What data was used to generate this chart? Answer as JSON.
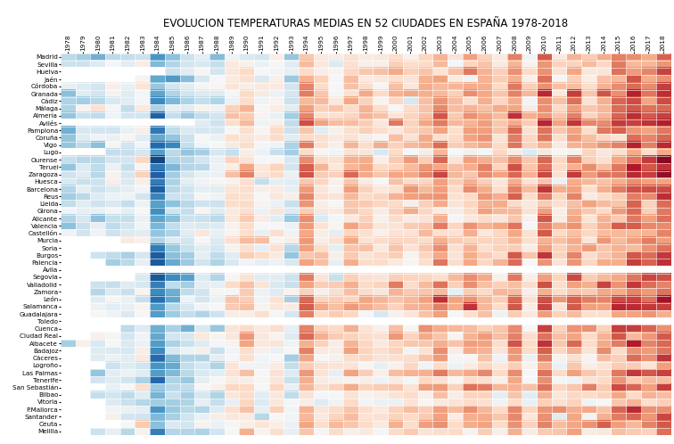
{
  "title": "EVOLUCION TEMPERATURAS MEDIAS EN 52 CIUDADES EN ESPAÑA 1978-2018",
  "years": [
    1978,
    1979,
    1980,
    1981,
    1982,
    1983,
    1984,
    1985,
    1986,
    1987,
    1988,
    1989,
    1990,
    1991,
    1992,
    1993,
    1994,
    1995,
    1996,
    1997,
    1998,
    1999,
    2000,
    2001,
    2002,
    2003,
    2004,
    2005,
    2006,
    2007,
    2008,
    2009,
    2010,
    2011,
    2012,
    2013,
    2014,
    2015,
    2016,
    2017,
    2018
  ],
  "cities": [
    "Madrid",
    "Sevilla",
    "Huelva",
    "Jaén",
    "Córdoba",
    "Granada",
    "Cádiz",
    "Málaga",
    "Almería",
    "Avilés",
    "Pamplona",
    "Coruña",
    "Vigo",
    "Lugo",
    "Ourense",
    "Teruel",
    "Zaragoza",
    "Huesca",
    "Barcelona",
    "Reus",
    "Lleida",
    "Girona",
    "Alicante",
    "Valencia",
    "Castellón",
    "Murcia",
    "Soria",
    "Burgos",
    "Palencia",
    "Ávila",
    "Segovia",
    "Valladolid",
    "Zamora",
    "León",
    "Salamanca",
    "Guadalajara",
    "Toledo",
    "Cuenca",
    "Ciudad Real",
    "Albacete",
    "Badajoz",
    "Cáceres",
    "Logroño",
    "Las Palmas",
    "Tenerife",
    "San Sebastián",
    "Bilbao",
    "Vitoria",
    "P.Mallorca",
    "Santander",
    "Ceuta",
    "Melilla"
  ],
  "vmin": -2.5,
  "vmax": 2.5,
  "cmap": "RdBu_r",
  "title_fontsize": 8.5,
  "tick_fontsize": 5.2,
  "figwidth": 7.56,
  "figheight": 4.98,
  "dpi": 100
}
